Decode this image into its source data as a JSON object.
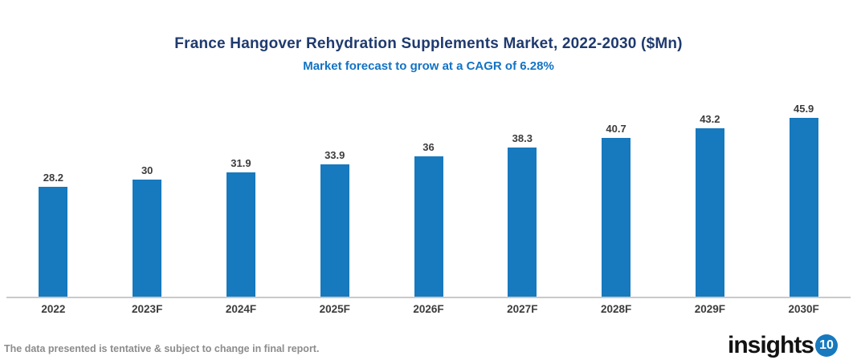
{
  "header": {
    "title": "France Hangover Rehydration Supplements Market, 2022-2030 ($Mn)",
    "subtitle": "Market forecast to grow at a CAGR of 6.28%"
  },
  "chart_data": {
    "type": "bar",
    "categories": [
      "2022",
      "2023F",
      "2024F",
      "2025F",
      "2026F",
      "2027F",
      "2028F",
      "2029F",
      "2030F"
    ],
    "values": [
      28.2,
      30,
      31.9,
      33.9,
      36,
      38.3,
      40.7,
      43.2,
      45.9
    ],
    "title": "France Hangover Rehydration Supplements Market, 2022-2030 ($Mn)",
    "subtitle": "Market forecast to grow at a CAGR of 6.28%",
    "xlabel": "",
    "ylabel": "",
    "ylim": [
      0,
      50
    ],
    "grid": false,
    "legend": false,
    "data_labels": true
  },
  "footer": {
    "disclaimer": "The data presented is tentative & subject to change in final report.",
    "logo_text": "insights",
    "logo_badge": "10"
  },
  "colors": {
    "title": "#1F3A6E",
    "subtitle": "#1273C4",
    "bar": "#1779BE",
    "axis_line": "#C9C9C9",
    "label": "#3C3C3C",
    "disclaimer": "#8C8C8C",
    "logo_badge_bg": "#1779BE"
  }
}
